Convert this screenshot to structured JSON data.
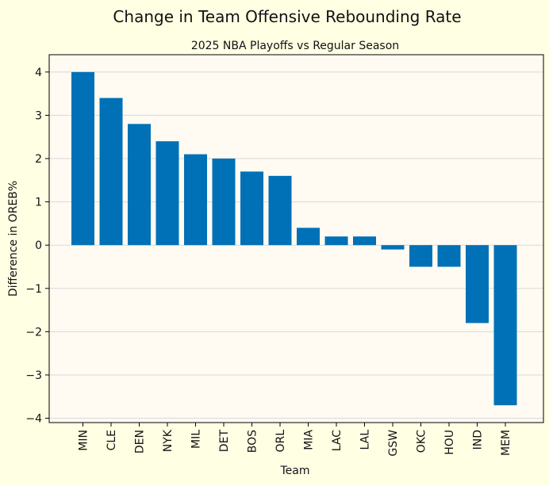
{
  "chart_data": {
    "type": "bar",
    "title": "Change in Team Offensive Rebounding Rate",
    "subtitle": "2025 NBA Playoffs vs Regular Season",
    "xlabel": "Team",
    "ylabel": "Difference in OREB%",
    "categories": [
      "MIN",
      "CLE",
      "DEN",
      "NYK",
      "MIL",
      "DET",
      "BOS",
      "ORL",
      "MIA",
      "LAC",
      "LAL",
      "GSW",
      "OKC",
      "HOU",
      "IND",
      "MEM"
    ],
    "values": [
      4.0,
      3.4,
      2.8,
      2.4,
      2.1,
      2.0,
      1.7,
      1.6,
      0.4,
      0.2,
      0.2,
      -0.1,
      -0.5,
      -0.5,
      -1.8,
      -3.7
    ],
    "ylim": [
      -4.1,
      4.4
    ],
    "yticks": [
      4,
      3,
      2,
      1,
      0,
      -1,
      -2,
      -3,
      -4
    ],
    "ytick_labels": [
      "4",
      "3",
      "2",
      "1",
      "0",
      "−1",
      "−2",
      "−3",
      "−4"
    ],
    "grid": "horizontal",
    "colors": {
      "figure_background": "#ffffe4",
      "plot_background": "#fffaf2",
      "bar": "#0071b6",
      "grid": "#d9d9d9",
      "axis": "#000000"
    }
  }
}
